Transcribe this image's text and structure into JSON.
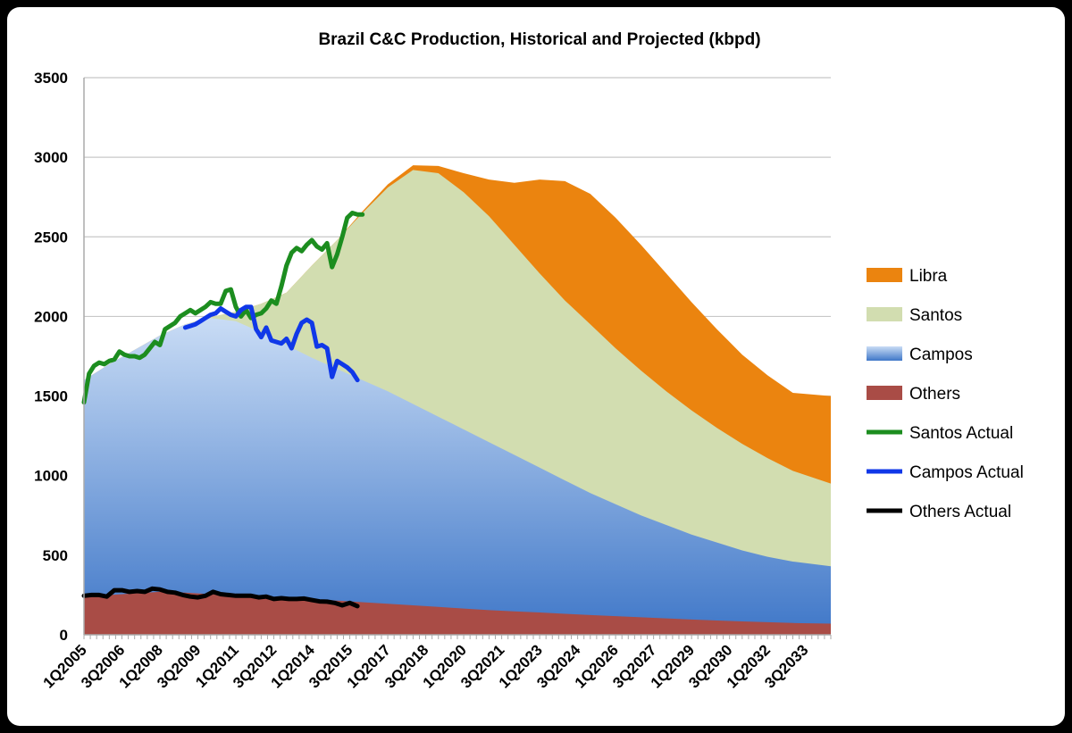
{
  "chart_data": {
    "type": "area",
    "title": "Brazil C&C Production, Historical and Projected (kbpd)",
    "xlabel": "",
    "ylabel": "",
    "ylim": [
      0,
      3500
    ],
    "yticks": [
      0,
      500,
      1000,
      1500,
      2000,
      2500,
      3000,
      3500
    ],
    "x_start": 2005.0,
    "x_end": 2034.5,
    "xtick_labels": [
      "1Q2005",
      "3Q2006",
      "1Q2008",
      "3Q2009",
      "1Q2011",
      "3Q2012",
      "1Q2014",
      "3Q2015",
      "1Q2017",
      "3Q2018",
      "1Q2020",
      "3Q2021",
      "1Q2023",
      "3Q2024",
      "1Q2026",
      "3Q2027",
      "1Q2029",
      "3Q2030",
      "1Q2032",
      "3Q2033"
    ],
    "area_series": [
      {
        "name": "Others",
        "color": "#a94c46",
        "x": [
          2005,
          2006,
          2007,
          2008,
          2009,
          2010,
          2011,
          2012,
          2013,
          2014,
          2015,
          2016,
          2017,
          2018,
          2019,
          2020,
          2021,
          2022,
          2023,
          2024,
          2025,
          2026,
          2027,
          2028,
          2029,
          2030,
          2031,
          2032,
          2033,
          2034.5
        ],
        "y": [
          240,
          250,
          260,
          270,
          265,
          255,
          248,
          240,
          232,
          225,
          215,
          205,
          195,
          185,
          175,
          165,
          155,
          147,
          140,
          132,
          124,
          117,
          110,
          103,
          96,
          90,
          84,
          79,
          74,
          70
        ]
      },
      {
        "name": "Campos",
        "color": "#6f9ad8",
        "x": [
          2005,
          2006,
          2007,
          2008,
          2009,
          2010,
          2011,
          2012,
          2013,
          2014,
          2015,
          2016,
          2017,
          2018,
          2019,
          2020,
          2021,
          2022,
          2023,
          2024,
          2025,
          2026,
          2027,
          2028,
          2029,
          2030,
          2031,
          2032,
          2033,
          2034.5
        ],
        "y": [
          1600,
          1700,
          1790,
          1880,
          1950,
          1990,
          1970,
          1900,
          1820,
          1740,
          1670,
          1600,
          1530,
          1450,
          1370,
          1290,
          1210,
          1130,
          1050,
          970,
          890,
          820,
          750,
          690,
          630,
          580,
          530,
          490,
          460,
          430
        ]
      },
      {
        "name": "Santos",
        "color": "#d2ddb0",
        "x": [
          2005,
          2006,
          2007,
          2008,
          2009,
          2010,
          2011,
          2012,
          2013,
          2014,
          2015,
          2016,
          2017,
          2018,
          2019,
          2020,
          2021,
          2022,
          2023,
          2024,
          2025,
          2026,
          2027,
          2028,
          2029,
          2030,
          2031,
          2032,
          2033,
          2034.5
        ],
        "y": [
          1600,
          1700,
          1790,
          1880,
          1950,
          1995,
          2030,
          2080,
          2150,
          2320,
          2480,
          2650,
          2810,
          2920,
          2900,
          2780,
          2630,
          2450,
          2270,
          2100,
          1950,
          1800,
          1660,
          1530,
          1410,
          1300,
          1200,
          1110,
          1030,
          950
        ]
      },
      {
        "name": "Libra",
        "color": "#eb840f",
        "x": [
          2005,
          2006,
          2007,
          2008,
          2009,
          2010,
          2011,
          2012,
          2013,
          2014,
          2015,
          2016,
          2017,
          2018,
          2019,
          2020,
          2021,
          2022,
          2023,
          2024,
          2025,
          2026,
          2027,
          2028,
          2029,
          2030,
          2031,
          2032,
          2033,
          2034.5
        ],
        "y": [
          1600,
          1700,
          1790,
          1880,
          1950,
          1995,
          2030,
          2080,
          2150,
          2320,
          2480,
          2660,
          2830,
          2950,
          2945,
          2900,
          2860,
          2840,
          2860,
          2850,
          2770,
          2620,
          2450,
          2270,
          2090,
          1920,
          1760,
          1630,
          1520,
          1500
        ]
      }
    ],
    "line_series": [
      {
        "name": "Santos Actual",
        "color": "#1c8d1f",
        "x": [
          2005.0,
          2005.2,
          2005.4,
          2005.6,
          2005.8,
          2006.0,
          2006.2,
          2006.4,
          2006.6,
          2006.8,
          2007.0,
          2007.2,
          2007.4,
          2007.6,
          2007.8,
          2008.0,
          2008.2,
          2008.4,
          2008.6,
          2008.8,
          2009.0,
          2009.2,
          2009.4,
          2009.6,
          2009.8,
          2010.0,
          2010.2,
          2010.4,
          2010.6,
          2010.8,
          2011.0,
          2011.2,
          2011.4,
          2011.6,
          2011.8,
          2012.0,
          2012.2,
          2012.4,
          2012.6,
          2012.8,
          2013.0,
          2013.2,
          2013.4,
          2013.6,
          2013.8,
          2014.0,
          2014.2,
          2014.4,
          2014.6,
          2014.8,
          2015.0,
          2015.2,
          2015.4,
          2015.6,
          2015.8,
          2016.0,
          2016.2,
          2016.4,
          2016.6,
          2016.8,
          2017.0
        ],
        "y": [
          1460,
          1640,
          1690,
          1710,
          1700,
          1720,
          1730,
          1780,
          1760,
          1750,
          1750,
          1740,
          1760,
          1800,
          1840,
          1820,
          1920,
          1940,
          1960,
          2000,
          2020,
          2040,
          2020,
          2040,
          2060,
          2090,
          2080,
          2080,
          2160,
          2170,
          2060,
          2000,
          2040,
          1990,
          2010,
          2020,
          2050,
          2100,
          2080,
          2190,
          2320,
          2400,
          2430,
          2410,
          2450,
          2480,
          2440,
          2420,
          2460,
          2310,
          2390,
          2500,
          2620,
          2650,
          2640,
          2640,
          null,
          null,
          null,
          null,
          null
        ]
      },
      {
        "name": "Campos Actual",
        "color": "#1038e8",
        "x": [
          2009.0,
          2009.2,
          2009.4,
          2009.6,
          2009.8,
          2010.0,
          2010.2,
          2010.4,
          2010.6,
          2010.8,
          2011.0,
          2011.2,
          2011.4,
          2011.6,
          2011.8,
          2012.0,
          2012.2,
          2012.4,
          2012.6,
          2012.8,
          2013.0,
          2013.2,
          2013.4,
          2013.6,
          2013.8,
          2014.0,
          2014.2,
          2014.4,
          2014.6,
          2014.8,
          2015.0,
          2015.2,
          2015.4,
          2015.6,
          2015.8
        ],
        "y": [
          1930,
          1940,
          1950,
          1970,
          1990,
          2010,
          2020,
          2050,
          2030,
          2010,
          2000,
          2040,
          2060,
          2060,
          1920,
          1870,
          1930,
          1850,
          1840,
          1830,
          1860,
          1800,
          1890,
          1960,
          1980,
          1960,
          1810,
          1820,
          1800,
          1620,
          1720,
          1700,
          1680,
          1650,
          1600
        ]
      },
      {
        "name": "Others Actual",
        "color": "#000000",
        "x": [
          2005.0,
          2005.3,
          2005.6,
          2005.9,
          2006.2,
          2006.5,
          2006.8,
          2007.1,
          2007.4,
          2007.7,
          2008.0,
          2008.3,
          2008.6,
          2008.9,
          2009.2,
          2009.5,
          2009.8,
          2010.1,
          2010.4,
          2010.7,
          2011.0,
          2011.3,
          2011.6,
          2011.9,
          2012.2,
          2012.5,
          2012.8,
          2013.1,
          2013.4,
          2013.7,
          2014.0,
          2014.3,
          2014.6,
          2014.9,
          2015.2,
          2015.5,
          2015.8
        ],
        "y": [
          245,
          250,
          250,
          240,
          280,
          280,
          270,
          275,
          270,
          290,
          285,
          270,
          265,
          250,
          240,
          235,
          245,
          270,
          255,
          250,
          245,
          245,
          245,
          235,
          240,
          225,
          230,
          225,
          225,
          228,
          218,
          210,
          208,
          200,
          185,
          200,
          180
        ]
      }
    ],
    "legend": [
      "Libra",
      "Santos",
      "Campos",
      "Others",
      "Santos Actual",
      "Campos Actual",
      "Others Actual"
    ],
    "legend_position": "right"
  }
}
